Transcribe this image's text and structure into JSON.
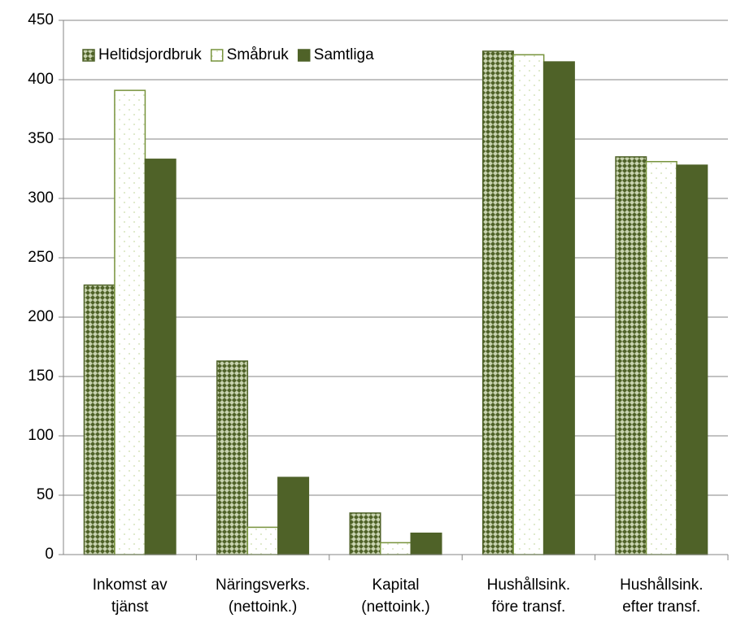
{
  "chart_data": {
    "type": "bar",
    "categories": [
      [
        "Inkomst av",
        "tjänst"
      ],
      [
        "Näringsverks.",
        "(nettoink.)"
      ],
      [
        "Kapital",
        "(nettoink.)"
      ],
      [
        "Hushållsink.",
        "före transf."
      ],
      [
        "Hushållsink.",
        "efter transf."
      ]
    ],
    "series": [
      {
        "name": "Heltidsjordbruk",
        "color": "#4f6228",
        "fill": "crosshatch",
        "values": [
          227,
          163,
          35,
          424,
          335
        ]
      },
      {
        "name": "Småbruk",
        "color": "#77933c",
        "fill": "dots",
        "values": [
          391,
          23,
          10,
          421,
          331
        ]
      },
      {
        "name": "Samtliga",
        "color": "#4f6228",
        "fill": "solid",
        "values": [
          333,
          65,
          18,
          415,
          328
        ]
      }
    ],
    "ylim": [
      0,
      450
    ],
    "yticks": [
      0,
      50,
      100,
      150,
      200,
      250,
      300,
      350,
      400,
      450
    ],
    "grid": true,
    "legend": "top-left"
  }
}
